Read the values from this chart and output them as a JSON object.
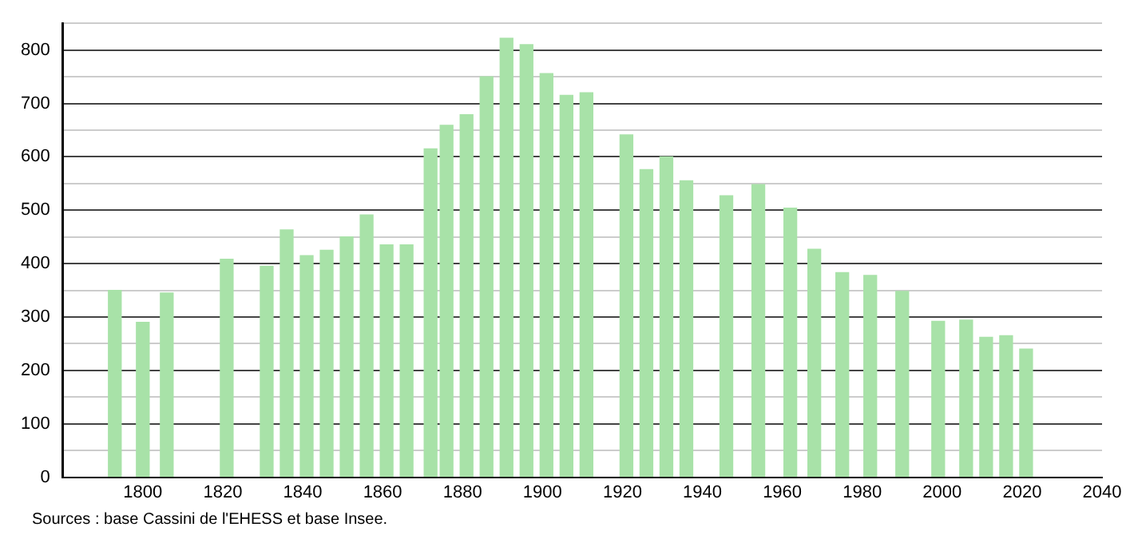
{
  "chart_data": {
    "type": "bar",
    "x": [
      1793,
      1800,
      1806,
      1821,
      1831,
      1836,
      1841,
      1846,
      1851,
      1856,
      1861,
      1866,
      1872,
      1876,
      1881,
      1886,
      1891,
      1896,
      1901,
      1906,
      1911,
      1921,
      1926,
      1931,
      1936,
      1946,
      1954,
      1962,
      1968,
      1975,
      1982,
      1990,
      1999,
      2006,
      2011,
      2016,
      2021
    ],
    "values": [
      350,
      290,
      345,
      408,
      395,
      463,
      415,
      425,
      450,
      491,
      435,
      435,
      615,
      659,
      679,
      750,
      822,
      810,
      756,
      715,
      720,
      641,
      576,
      600,
      555,
      527,
      548,
      504,
      427,
      383,
      378,
      348,
      292,
      294,
      262,
      265,
      240
    ],
    "color": "#a8e2a8",
    "xlim": [
      1780,
      2040
    ],
    "xticks": [
      1800,
      1820,
      1840,
      1860,
      1880,
      1900,
      1920,
      1940,
      1960,
      1980,
      2000,
      2020,
      2040
    ],
    "ylim": [
      0,
      850
    ],
    "yticks": [
      0,
      {
        "value": 50,
        "label": null
      },
      100,
      {
        "value": 150,
        "label": null
      },
      200,
      {
        "value": 250,
        "label": null
      },
      300,
      {
        "value": 350,
        "label": null
      },
      400,
      {
        "value": 450,
        "label": null
      },
      500,
      {
        "value": 550,
        "label": null
      },
      600,
      {
        "value": 650,
        "label": null
      },
      700,
      {
        "value": 750,
        "label": null
      },
      800,
      {
        "value": 850,
        "label": null
      }
    ],
    "grid": "y",
    "legend": false,
    "annotations": [
      "Sources : base Cassini de l'EHESS et base Insee."
    ]
  }
}
